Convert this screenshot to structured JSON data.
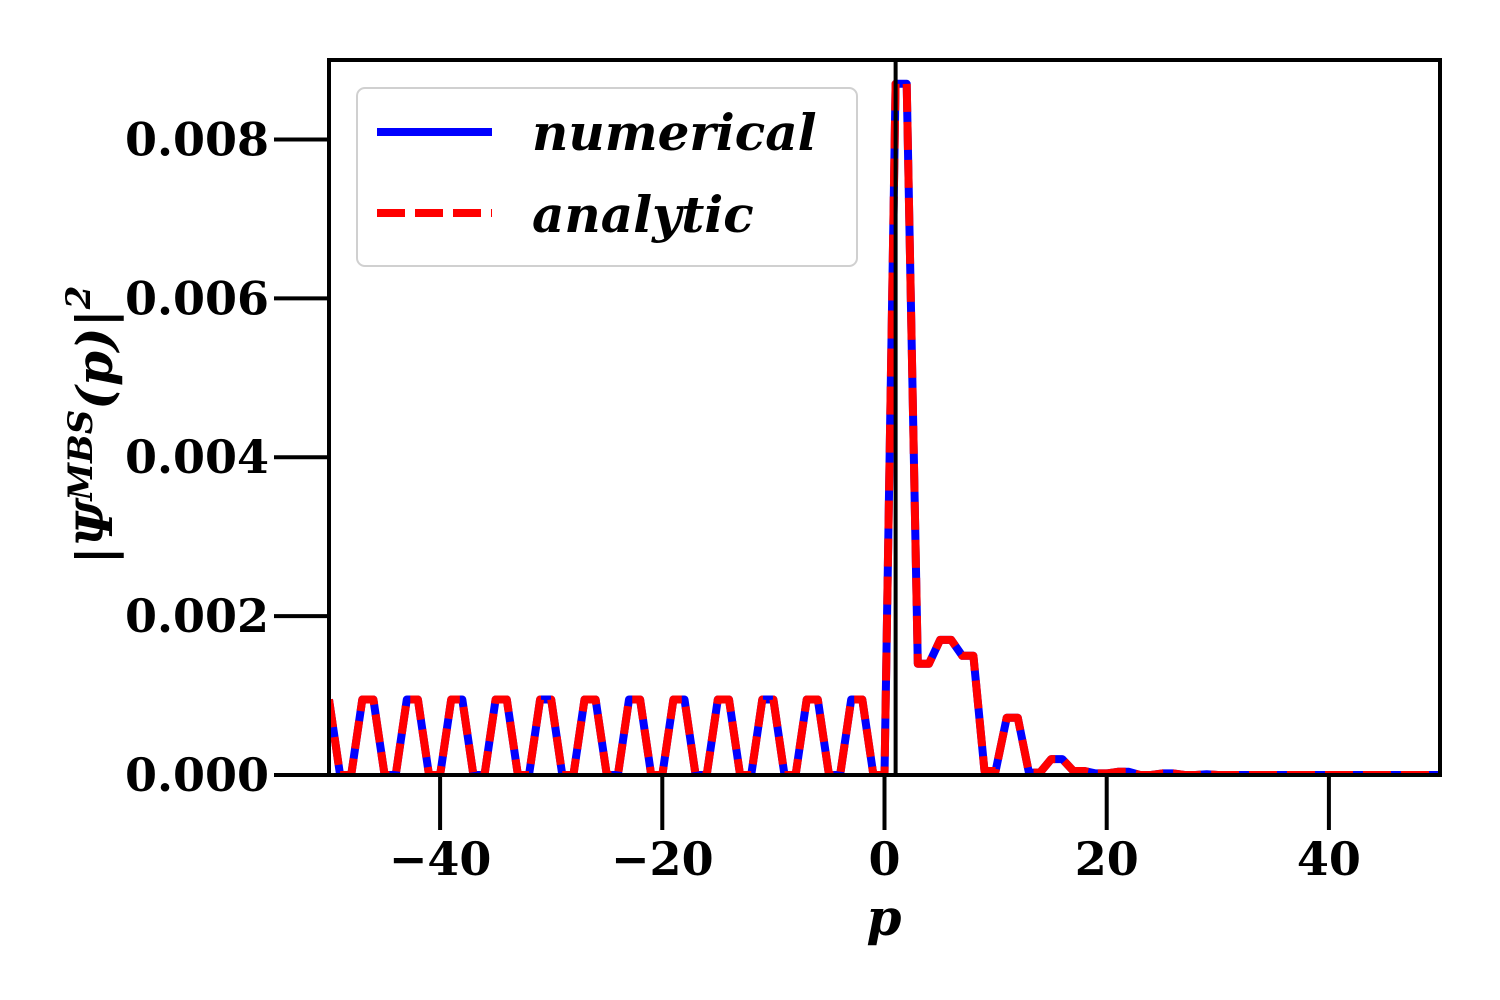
{
  "chart_data": {
    "type": "line",
    "xlabel": "p",
    "ylabel": "|Ψ^{MBS}(p)|²",
    "ylabel_parts": {
      "base": "|Ψ",
      "sup": "MBS",
      "mid": "(p)|",
      "exp": "2"
    },
    "xlim": [
      -50,
      50
    ],
    "ylim": [
      0,
      0.009
    ],
    "xticks": [
      -40,
      -20,
      0,
      20,
      40
    ],
    "xtick_labels": [
      "−40",
      "−20",
      "0",
      "20",
      "40"
    ],
    "yticks": [
      0,
      0.002,
      0.004,
      0.006,
      0.008
    ],
    "ytick_labels": [
      "0.000",
      "0.002",
      "0.004",
      "0.006",
      "0.008"
    ],
    "vline_x": 1,
    "legend_position": "upper-left",
    "series": [
      {
        "name": "numerical",
        "color": "#0000ff",
        "style": "solid",
        "x": [
          -50,
          -49,
          -48,
          -47,
          -46,
          -45,
          -44,
          -43,
          -42,
          -41,
          -40,
          -39,
          -38,
          -37,
          -36,
          -35,
          -34,
          -33,
          -32,
          -31,
          -30,
          -29,
          -28,
          -27,
          -26,
          -25,
          -24,
          -23,
          -22,
          -21,
          -20,
          -19,
          -18,
          -17,
          -16,
          -15,
          -14,
          -13,
          -12,
          -11,
          -10,
          -9,
          -8,
          -7,
          -6,
          -5,
          -4,
          -3,
          -2,
          -1,
          0,
          1,
          2,
          3,
          4,
          5,
          6,
          7,
          8,
          9,
          10,
          11,
          12,
          13,
          14,
          15,
          16,
          17,
          18,
          19,
          20,
          21,
          22,
          23,
          24,
          25,
          26,
          27,
          28,
          29,
          30,
          35,
          40,
          45,
          50
        ],
        "y": [
          0.00095,
          0.0,
          0.0,
          0.00095,
          0.00095,
          0.0,
          0.0,
          0.00095,
          0.00095,
          0.0,
          0.0,
          0.00095,
          0.00095,
          0.0,
          0.0,
          0.00095,
          0.00095,
          0.0,
          0.0,
          0.00095,
          0.00095,
          0.0,
          0.0,
          0.00095,
          0.00095,
          0.0,
          0.0,
          0.00095,
          0.00095,
          0.0,
          0.0,
          0.00095,
          0.00095,
          0.0,
          0.0,
          0.00095,
          0.00095,
          0.0,
          0.0,
          0.00095,
          0.00095,
          0.0,
          0.0,
          0.00095,
          0.00095,
          0.0,
          0.0,
          0.00095,
          0.00095,
          0.0,
          0.0,
          0.0087,
          0.0087,
          0.0014,
          0.0014,
          0.0017,
          0.0017,
          0.0015,
          0.0015,
          5e-05,
          5e-05,
          0.00072,
          0.00072,
          3e-05,
          3e-05,
          0.0002,
          0.0002,
          5e-05,
          5e-05,
          2e-05,
          2e-05,
          4e-05,
          4e-05,
          0.0,
          0.0,
          2e-05,
          2e-05,
          0.0,
          0.0,
          1e-05,
          0.0,
          0.0,
          0.0,
          0.0,
          0.0
        ]
      },
      {
        "name": "analytic",
        "color": "#ff0000",
        "style": "dashed",
        "x": [
          -50,
          -49,
          -48,
          -47,
          -46,
          -45,
          -44,
          -43,
          -42,
          -41,
          -40,
          -39,
          -38,
          -37,
          -36,
          -35,
          -34,
          -33,
          -32,
          -31,
          -30,
          -29,
          -28,
          -27,
          -26,
          -25,
          -24,
          -23,
          -22,
          -21,
          -20,
          -19,
          -18,
          -17,
          -16,
          -15,
          -14,
          -13,
          -12,
          -11,
          -10,
          -9,
          -8,
          -7,
          -6,
          -5,
          -4,
          -3,
          -2,
          -1,
          0,
          1,
          2,
          3,
          4,
          5,
          6,
          7,
          8,
          9,
          10,
          11,
          12,
          13,
          14,
          15,
          16,
          17,
          18,
          19,
          20,
          21,
          22,
          23,
          24,
          25,
          26,
          27,
          28,
          29,
          30,
          35,
          40,
          45,
          50
        ],
        "y": [
          0.00095,
          0.0,
          0.0,
          0.00095,
          0.00095,
          0.0,
          0.0,
          0.00095,
          0.00095,
          0.0,
          0.0,
          0.00095,
          0.00095,
          0.0,
          0.0,
          0.00095,
          0.00095,
          0.0,
          0.0,
          0.00095,
          0.00095,
          0.0,
          0.0,
          0.00095,
          0.00095,
          0.0,
          0.0,
          0.00095,
          0.00095,
          0.0,
          0.0,
          0.00095,
          0.00095,
          0.0,
          0.0,
          0.00095,
          0.00095,
          0.0,
          0.0,
          0.00095,
          0.00095,
          0.0,
          0.0,
          0.00095,
          0.00095,
          0.0,
          0.0,
          0.00095,
          0.00095,
          0.0,
          0.0,
          0.0087,
          0.0087,
          0.0014,
          0.0014,
          0.0017,
          0.0017,
          0.0015,
          0.0015,
          5e-05,
          5e-05,
          0.00072,
          0.00072,
          3e-05,
          3e-05,
          0.0002,
          0.0002,
          5e-05,
          5e-05,
          2e-05,
          2e-05,
          4e-05,
          4e-05,
          0.0,
          0.0,
          2e-05,
          2e-05,
          0.0,
          0.0,
          1e-05,
          0.0,
          0.0,
          0.0,
          0.0,
          0.0
        ]
      }
    ]
  }
}
